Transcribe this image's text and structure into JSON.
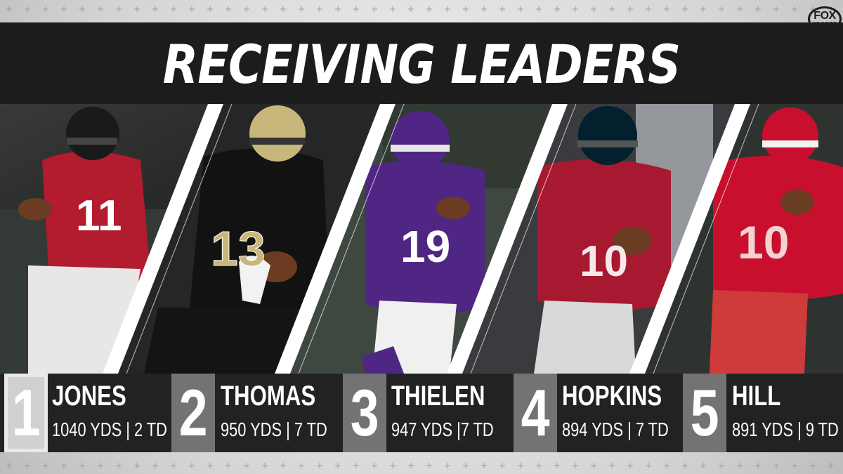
{
  "header": {
    "title": "RECEIVING LEADERS",
    "logo": {
      "line1": "FOX",
      "line2": "SPORTS"
    }
  },
  "colors": {
    "header_bg": "#1c1c1c",
    "stat_bar_bg": "#222222",
    "rank_light": "#e9e9e9",
    "rank_dark": "#737373"
  },
  "leaders": [
    {
      "rank": "1",
      "name": "JONES",
      "stats": "1040 YDS | 2 TD",
      "jersey": "11",
      "team_colors": [
        "#a71930",
        "#1a1a1a"
      ]
    },
    {
      "rank": "2",
      "name": "THOMAS",
      "stats": "950 YDS | 7 TD",
      "jersey": "13",
      "team_colors": [
        "#111111",
        "#c8b77a"
      ]
    },
    {
      "rank": "3",
      "name": "THIELEN",
      "stats": "947 YDS |7 TD",
      "jersey": "19",
      "team_colors": [
        "#4f2683",
        "#ffffff"
      ]
    },
    {
      "rank": "4",
      "name": "HOPKINS",
      "stats": "894 YDS | 7 TD",
      "jersey": "10",
      "team_colors": [
        "#a71930",
        "#03202f"
      ]
    },
    {
      "rank": "5",
      "name": "HILL",
      "stats": "891 YDS | 9 TD",
      "jersey": "10",
      "team_colors": [
        "#c8102e",
        "#e8a0a0"
      ]
    }
  ]
}
